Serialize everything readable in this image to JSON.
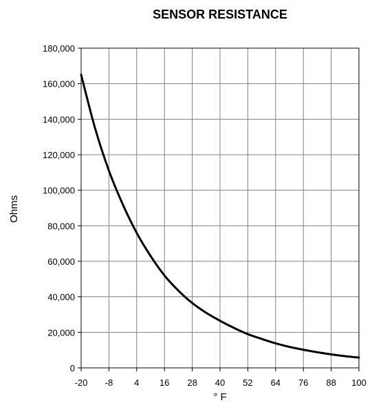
{
  "chart_data": {
    "type": "line",
    "title": "SENSOR RESISTANCE",
    "xlabel": "° F",
    "ylabel": "Ohms",
    "xlim": [
      -20,
      100
    ],
    "ylim": [
      0,
      180000
    ],
    "x_ticks": [
      -20,
      -8,
      4,
      16,
      28,
      40,
      52,
      64,
      76,
      88,
      100
    ],
    "y_ticks": [
      0,
      20000,
      40000,
      60000,
      80000,
      100000,
      120000,
      140000,
      160000,
      180000
    ],
    "x_tick_labels": [
      "-20",
      "-8",
      "4",
      "16",
      "28",
      "40",
      "52",
      "64",
      "76",
      "88",
      "100"
    ],
    "y_tick_labels": [
      "0",
      "20,000",
      "40,000",
      "60,000",
      "80,000",
      "100,000",
      "120,000",
      "140,000",
      "160,000",
      "180,000"
    ],
    "grid": true,
    "series": [
      {
        "color": "#000000",
        "x": [
          -20,
          -14,
          -8,
          -2,
          4,
          10,
          16,
          22,
          28,
          34,
          40,
          46,
          52,
          58,
          64,
          70,
          76,
          82,
          88,
          94,
          100
        ],
        "y": [
          165000,
          135000,
          111000,
          92000,
          76000,
          63000,
          52000,
          43500,
          36500,
          31000,
          26500,
          22500,
          19000,
          16300,
          13800,
          11800,
          10200,
          8800,
          7600,
          6600,
          5800
        ]
      }
    ]
  }
}
